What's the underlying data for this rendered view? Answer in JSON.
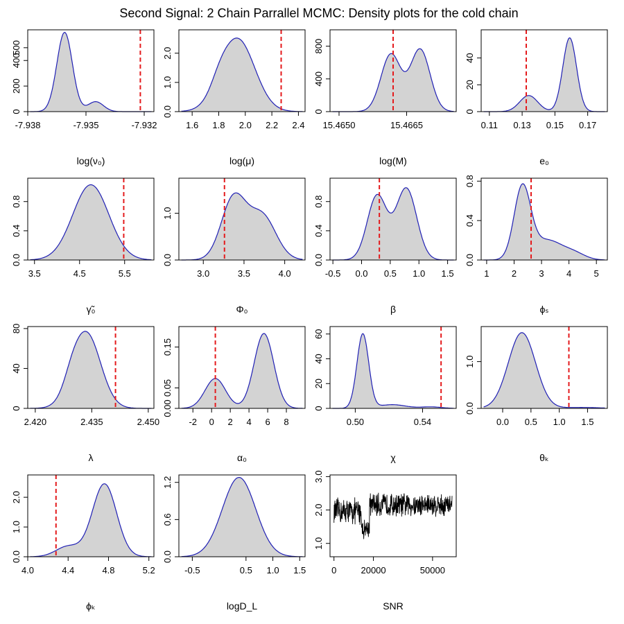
{
  "title": "Second Signal: 2 Chain Parrallel MCMC: Density plots for the cold chain",
  "colors": {
    "fill": "#d3d3d3",
    "curve": "#1f1fb4",
    "ref": "#e41a1c",
    "trace": "#000000"
  },
  "chart_data": [
    {
      "type": "area",
      "xlabel": "log(ν₀)",
      "xlim": [
        -7.938,
        -7.9315
      ],
      "ylim": [
        0,
        640
      ],
      "xticks": [
        {
          "v": -7.938,
          "l": "-7.938"
        },
        {
          "v": -7.935,
          "l": "-7.935"
        },
        {
          "v": -7.932,
          "l": "-7.932"
        }
      ],
      "yticks": [
        {
          "v": 0,
          "l": "0"
        },
        {
          "v": 200,
          "l": "200"
        },
        {
          "v": 400,
          "l": "400"
        },
        {
          "v": 500,
          "l": "500"
        }
      ],
      "ref": -7.9322,
      "components": [
        {
          "m": -7.9361,
          "s": 0.0004,
          "h": 620
        },
        {
          "m": -7.9345,
          "s": 0.0004,
          "h": 78
        }
      ]
    },
    {
      "type": "area",
      "xlabel": "log(μ)",
      "xlim": [
        1.5,
        2.45
      ],
      "ylim": [
        0,
        2.8
      ],
      "xticks": [
        {
          "v": 1.6,
          "l": "1.6"
        },
        {
          "v": 1.8,
          "l": "1.8"
        },
        {
          "v": 2.0,
          "l": "2.0"
        },
        {
          "v": 2.2,
          "l": "2.2"
        },
        {
          "v": 2.4,
          "l": "2.4"
        }
      ],
      "yticks": [
        {
          "v": 0,
          "l": "0.0"
        },
        {
          "v": 1.0,
          "l": "1.0"
        },
        {
          "v": 2.0,
          "l": "2.0"
        }
      ],
      "ref": 2.27,
      "components": [
        {
          "m": 1.94,
          "s": 0.13,
          "h": 2.5
        },
        {
          "m": 1.8,
          "s": 0.06,
          "h": 0.25
        }
      ]
    },
    {
      "type": "area",
      "xlabel": "log(M)",
      "xlim": [
        15.4648,
        15.4676
      ],
      "ylim": [
        0,
        1000
      ],
      "xticks": [
        {
          "v": 15.465,
          "l": "15.4650"
        },
        {
          "v": 15.4665,
          "l": "15.4665"
        }
      ],
      "yticks": [
        {
          "v": 0,
          "l": "0"
        },
        {
          "v": 400,
          "l": "400"
        },
        {
          "v": 800,
          "l": "800"
        }
      ],
      "ref": 15.4662,
      "components": [
        {
          "m": 15.46615,
          "s": 0.00022,
          "h": 700
        },
        {
          "m": 15.4668,
          "s": 0.00022,
          "h": 760
        }
      ]
    },
    {
      "type": "area",
      "xlabel": "e₀",
      "xlim": [
        0.105,
        0.182
      ],
      "ylim": [
        0,
        61
      ],
      "xticks": [
        {
          "v": 0.11,
          "l": "0.11"
        },
        {
          "v": 0.13,
          "l": "0.13"
        },
        {
          "v": 0.15,
          "l": "0.15"
        },
        {
          "v": 0.17,
          "l": "0.17"
        }
      ],
      "yticks": [
        {
          "v": 0,
          "l": "0"
        },
        {
          "v": 20,
          "l": "20"
        },
        {
          "v": 40,
          "l": "40"
        }
      ],
      "ref": 0.1325,
      "components": [
        {
          "m": 0.134,
          "s": 0.0055,
          "h": 12
        },
        {
          "m": 0.159,
          "s": 0.0042,
          "h": 55
        }
      ]
    },
    {
      "type": "area",
      "xlabel": "γ̃₀",
      "xlim": [
        3.35,
        6.15
      ],
      "ylim": [
        0,
        1.12
      ],
      "xticks": [
        {
          "v": 3.5,
          "l": "3.5"
        },
        {
          "v": 4.5,
          "l": "4.5"
        },
        {
          "v": 5.5,
          "l": "5.5"
        }
      ],
      "yticks": [
        {
          "v": 0,
          "l": "0.0"
        },
        {
          "v": 0.4,
          "l": "0.4"
        },
        {
          "v": 0.8,
          "l": "0.8"
        }
      ],
      "ref": 5.48,
      "components": [
        {
          "m": 4.75,
          "s": 0.4,
          "h": 1.03
        }
      ]
    },
    {
      "type": "area",
      "xlabel": "Φ₀",
      "xlim": [
        2.7,
        4.25
      ],
      "ylim": [
        0,
        1.75
      ],
      "xticks": [
        {
          "v": 3.0,
          "l": "3.0"
        },
        {
          "v": 3.5,
          "l": "3.5"
        },
        {
          "v": 4.0,
          "l": "4.0"
        }
      ],
      "yticks": [
        {
          "v": 0,
          "l": "0.0"
        },
        {
          "v": 1.0,
          "l": "1.0"
        }
      ],
      "ref": 3.26,
      "components": [
        {
          "m": 3.37,
          "s": 0.15,
          "h": 1.3
        },
        {
          "m": 3.72,
          "s": 0.17,
          "h": 0.95
        }
      ]
    },
    {
      "type": "area",
      "xlabel": "β",
      "xlim": [
        -0.55,
        1.65
      ],
      "ylim": [
        0,
        1.12
      ],
      "xticks": [
        {
          "v": -0.5,
          "l": "-0.5"
        },
        {
          "v": 0.0,
          "l": "0.0"
        },
        {
          "v": 0.5,
          "l": "0.5"
        },
        {
          "v": 1.0,
          "l": "1.0"
        },
        {
          "v": 1.5,
          "l": "1.5"
        }
      ],
      "yticks": [
        {
          "v": 0,
          "l": "0.0"
        },
        {
          "v": 0.4,
          "l": "0.4"
        },
        {
          "v": 0.8,
          "l": "0.8"
        }
      ],
      "ref": 0.31,
      "components": [
        {
          "m": 0.27,
          "s": 0.17,
          "h": 0.88
        },
        {
          "m": 0.78,
          "s": 0.18,
          "h": 0.98
        }
      ]
    },
    {
      "type": "area",
      "xlabel": "ϕₛ",
      "xlim": [
        0.8,
        5.4
      ],
      "ylim": [
        0,
        0.83
      ],
      "xticks": [
        {
          "v": 1,
          "l": "1"
        },
        {
          "v": 2,
          "l": "2"
        },
        {
          "v": 3,
          "l": "3"
        },
        {
          "v": 4,
          "l": "4"
        },
        {
          "v": 5,
          "l": "5"
        }
      ],
      "yticks": [
        {
          "v": 0,
          "l": "0.0"
        },
        {
          "v": 0.4,
          "l": "0.4"
        },
        {
          "v": 0.8,
          "l": "0.8"
        }
      ],
      "ref": 2.62,
      "components": [
        {
          "m": 2.3,
          "s": 0.3,
          "h": 0.72
        },
        {
          "m": 3.2,
          "s": 0.55,
          "h": 0.2
        },
        {
          "m": 4.2,
          "s": 0.4,
          "h": 0.06
        }
      ]
    },
    {
      "type": "area",
      "xlabel": "λ",
      "xlim": [
        2.418,
        2.4515
      ],
      "ylim": [
        0,
        82
      ],
      "xticks": [
        {
          "v": 2.42,
          "l": "2.420"
        },
        {
          "v": 2.435,
          "l": "2.435"
        },
        {
          "v": 2.45,
          "l": "2.450"
        }
      ],
      "yticks": [
        {
          "v": 0,
          "l": "0"
        },
        {
          "v": 40,
          "l": "40"
        },
        {
          "v": 80,
          "l": "80"
        }
      ],
      "ref": 2.4413,
      "components": [
        {
          "m": 2.4335,
          "s": 0.0038,
          "h": 76
        },
        {
          "m": 2.4295,
          "s": 0.002,
          "h": 8
        }
      ]
    },
    {
      "type": "area",
      "xlabel": "α₀",
      "xlim": [
        -3.5,
        10
      ],
      "ylim": [
        0,
        0.2
      ],
      "xticks": [
        {
          "v": -2,
          "l": "-2"
        },
        {
          "v": 0,
          "l": "0"
        },
        {
          "v": 2,
          "l": "2"
        },
        {
          "v": 4,
          "l": "4"
        },
        {
          "v": 6,
          "l": "6"
        },
        {
          "v": 8,
          "l": "8"
        }
      ],
      "yticks": [
        {
          "v": 0,
          "l": "0.00"
        },
        {
          "v": 0.05,
          "l": "0.05"
        },
        {
          "v": 0.15,
          "l": "0.15"
        }
      ],
      "ref": 0.4,
      "components": [
        {
          "m": 0.4,
          "s": 1.1,
          "h": 0.073
        },
        {
          "m": 5.6,
          "s": 1.05,
          "h": 0.183
        }
      ]
    },
    {
      "type": "area",
      "xlabel": "χ",
      "xlim": [
        0.485,
        0.56
      ],
      "ylim": [
        0,
        66
      ],
      "xticks": [
        {
          "v": 0.5,
          "l": "0.50"
        },
        {
          "v": 0.54,
          "l": "0.54"
        }
      ],
      "yticks": [
        {
          "v": 0,
          "l": "0"
        },
        {
          "v": 20,
          "l": "20"
        },
        {
          "v": 40,
          "l": "40"
        },
        {
          "v": 60,
          "l": "60"
        }
      ],
      "ref": 0.551,
      "components": [
        {
          "m": 0.5045,
          "s": 0.0035,
          "h": 60
        },
        {
          "m": 0.522,
          "s": 0.008,
          "h": 3
        },
        {
          "m": 0.545,
          "s": 0.006,
          "h": 1.2
        }
      ]
    },
    {
      "type": "area",
      "xlabel": "θₖ",
      "xlim": [
        -0.38,
        1.85
      ],
      "ylim": [
        0,
        1.75
      ],
      "xticks": [
        {
          "v": 0.0,
          "l": "0.0"
        },
        {
          "v": 0.5,
          "l": "0.5"
        },
        {
          "v": 1.0,
          "l": "1.0"
        },
        {
          "v": 1.5,
          "l": "1.5"
        }
      ],
      "yticks": [
        {
          "v": 0,
          "l": "0.0"
        },
        {
          "v": 1.0,
          "l": "1.0"
        }
      ],
      "ref": 1.17,
      "components": [
        {
          "m": 0.34,
          "s": 0.24,
          "h": 1.62
        },
        {
          "m": 1.4,
          "s": 0.3,
          "h": 0.02
        }
      ]
    },
    {
      "type": "area",
      "xlabel": "ϕₖ",
      "xlim": [
        4.0,
        5.25
      ],
      "ylim": [
        0,
        2.75
      ],
      "xticks": [
        {
          "v": 4.0,
          "l": "4.0"
        },
        {
          "v": 4.4,
          "l": "4.4"
        },
        {
          "v": 4.8,
          "l": "4.8"
        },
        {
          "v": 5.2,
          "l": "5.2"
        }
      ],
      "yticks": [
        {
          "v": 0,
          "l": "0.0"
        },
        {
          "v": 1.0,
          "l": "1.0"
        },
        {
          "v": 2.0,
          "l": "2.0"
        }
      ],
      "ref": 4.28,
      "components": [
        {
          "m": 4.76,
          "s": 0.12,
          "h": 2.45
        },
        {
          "m": 4.4,
          "s": 0.12,
          "h": 0.35
        }
      ]
    },
    {
      "type": "area",
      "xlabel": "logD_L",
      "xlim": [
        -0.75,
        1.6
      ],
      "ylim": [
        0,
        1.32
      ],
      "xticks": [
        {
          "v": -0.5,
          "l": "-0.5"
        },
        {
          "v": 0.5,
          "l": "0.5"
        },
        {
          "v": 1.0,
          "l": "1.0"
        },
        {
          "v": 1.5,
          "l": "1.5"
        }
      ],
      "yticks": [
        {
          "v": 0,
          "l": "0.0"
        },
        {
          "v": 0.6,
          "l": "0.6"
        },
        {
          "v": 1.2,
          "l": "1.2"
        }
      ],
      "ref": null,
      "components": [
        {
          "m": 0.37,
          "s": 0.31,
          "h": 1.28
        }
      ]
    },
    {
      "type": "line",
      "xlabel": "SNR",
      "xlim": [
        -2000,
        62000
      ],
      "ylim": [
        0.6,
        3.05
      ],
      "xticks": [
        {
          "v": 0,
          "l": "0"
        },
        {
          "v": 20000,
          "l": "20000"
        },
        {
          "v": 50000,
          "l": "50000"
        }
      ],
      "yticks": [
        {
          "v": 1.0,
          "l": "1.0"
        },
        {
          "v": 2.0,
          "l": "2.0"
        },
        {
          "v": 3.0,
          "l": "3.0"
        }
      ],
      "trace_segments": [
        {
          "x0": 0,
          "x1": 14000,
          "mean": 1.95,
          "amp": 0.45
        },
        {
          "x0": 14000,
          "x1": 18000,
          "mean": 1.45,
          "amp": 0.35
        },
        {
          "x0": 18000,
          "x1": 60000,
          "mean": 2.15,
          "amp": 0.4
        }
      ]
    }
  ]
}
